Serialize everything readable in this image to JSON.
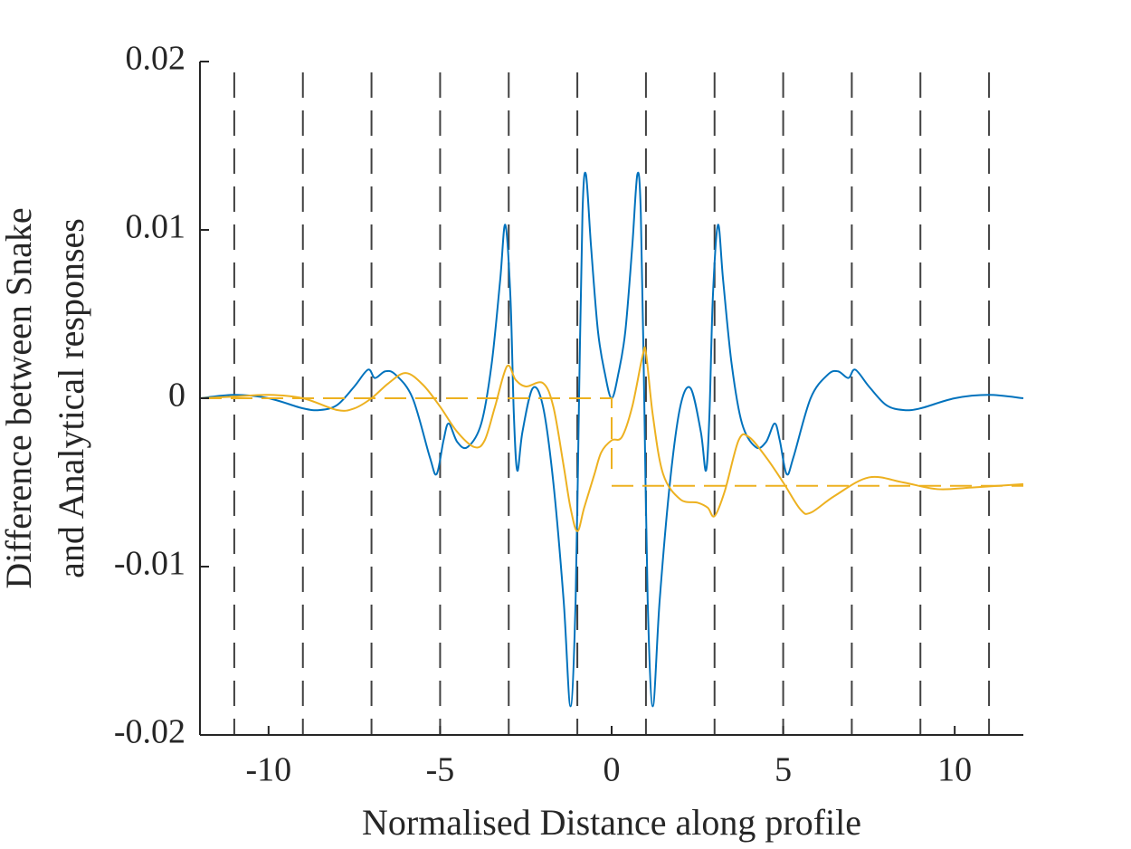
{
  "chart_data": {
    "type": "line",
    "xlabel": "Normalised Distance along profile",
    "ylabel": [
      "Difference between Snake",
      "and Analytical responses"
    ],
    "xlim": [
      -12,
      12
    ],
    "xticks": [
      -10,
      -5,
      0,
      5,
      10
    ],
    "ylim": [
      -0.02,
      0.02
    ],
    "yticks": [
      -0.02,
      -0.01,
      0,
      0.01,
      0.02
    ],
    "vlines": [
      -11,
      -9,
      -7,
      -5,
      -3,
      -1,
      1,
      3,
      5,
      7,
      9,
      11
    ],
    "vline_color": "#404040",
    "series": [
      {
        "color": "#0072BD",
        "x": [
          -12,
          -11,
          -10,
          -9,
          -8.5,
          -8,
          -7.5,
          -7.1,
          -6.9,
          -6.6,
          -6.3,
          -5.8,
          -5.3,
          -5.1,
          -4.9,
          -4.75,
          -4.5,
          -4.2,
          -3.8,
          -3.5,
          -3.25,
          -3.1,
          -2.95,
          -2.85,
          -2.75,
          -2.6,
          -2.3,
          -2,
          -1.7,
          -1.4,
          -1.2,
          -1.05,
          -0.95,
          -0.85,
          -0.75,
          -0.6,
          -0.4,
          -0.2,
          0,
          0.2,
          0.4,
          0.6,
          0.75,
          0.85,
          0.95,
          1.05,
          1.2,
          1.4,
          1.7,
          2,
          2.3,
          2.6,
          2.75,
          2.85,
          2.95,
          3.1,
          3.25,
          3.5,
          3.8,
          4.2,
          4.5,
          4.75,
          4.9,
          5.1,
          5.3,
          5.8,
          6.3,
          6.6,
          6.9,
          7.1,
          7.5,
          8,
          8.5,
          9,
          10,
          11,
          12
        ],
        "values": [
          0,
          0.0002,
          0,
          -0.0006,
          -0.0007,
          -0.0004,
          0.0007,
          0.0017,
          0.0012,
          0.0016,
          0.0014,
          0,
          -0.0035,
          -0.0045,
          -0.0025,
          -0.0015,
          -0.0026,
          -0.0029,
          -0.0015,
          0.002,
          0.007,
          0.0103,
          0.006,
          -0.001,
          -0.0043,
          -0.002,
          0.0006,
          -0.0005,
          -0.005,
          -0.012,
          -0.0183,
          -0.012,
          0,
          0.011,
          0.0133,
          0.009,
          0.004,
          0.0015,
          0,
          0.0015,
          0.004,
          0.009,
          0.0133,
          0.011,
          0,
          -0.012,
          -0.0183,
          -0.012,
          -0.005,
          -0.0005,
          0.0006,
          -0.002,
          -0.0043,
          -0.001,
          0.006,
          0.0103,
          0.007,
          0.002,
          -0.0015,
          -0.0029,
          -0.0026,
          -0.0015,
          -0.0025,
          -0.0045,
          -0.0035,
          0,
          0.0014,
          0.0016,
          0.0012,
          0.0017,
          0.0007,
          -0.0004,
          -0.0007,
          -0.0006,
          0,
          0.0002,
          0
        ]
      },
      {
        "color": "#EDB120",
        "x": [
          -12,
          -11,
          -10,
          -9,
          -8,
          -7.5,
          -7,
          -6.5,
          -6,
          -5.5,
          -5,
          -4.5,
          -4,
          -3.7,
          -3.4,
          -3.05,
          -2.8,
          -2.5,
          -2,
          -1.7,
          -1.4,
          -1.2,
          -1,
          -0.8,
          -0.5,
          -0.3,
          0,
          0.3,
          0.6,
          0.9,
          1,
          1.2,
          1.5,
          2,
          2.5,
          2.8,
          3,
          3.3,
          3.7,
          4,
          4.5,
          5,
          5.5,
          5.8,
          6.5,
          7.5,
          8.5,
          9.5,
          10.5,
          12
        ],
        "values": [
          0,
          0.0001,
          0.0002,
          0,
          -0.0007,
          -0.0006,
          0,
          0.0009,
          0.0015,
          0.0008,
          -0.0005,
          -0.002,
          -0.0029,
          -0.0025,
          -0.0005,
          0.0019,
          0.0011,
          0.0007,
          0.0009,
          -0.0005,
          -0.004,
          -0.0065,
          -0.0079,
          -0.0065,
          -0.0045,
          -0.0032,
          -0.0025,
          -0.0023,
          -0.0005,
          0.0025,
          0.0027,
          -0.001,
          -0.0045,
          -0.006,
          -0.0062,
          -0.0065,
          -0.007,
          -0.0055,
          -0.0025,
          -0.0023,
          -0.0035,
          -0.005,
          -0.0066,
          -0.0068,
          -0.0058,
          -0.0047,
          -0.005,
          -0.0054,
          -0.0053,
          -0.0051
        ]
      },
      {
        "color": "#EDB120",
        "dashed": true,
        "x": [
          -12,
          0,
          0,
          0,
          0,
          12
        ],
        "values": [
          0,
          0,
          -0.0042,
          null,
          -0.0052,
          -0.0052
        ]
      }
    ]
  }
}
